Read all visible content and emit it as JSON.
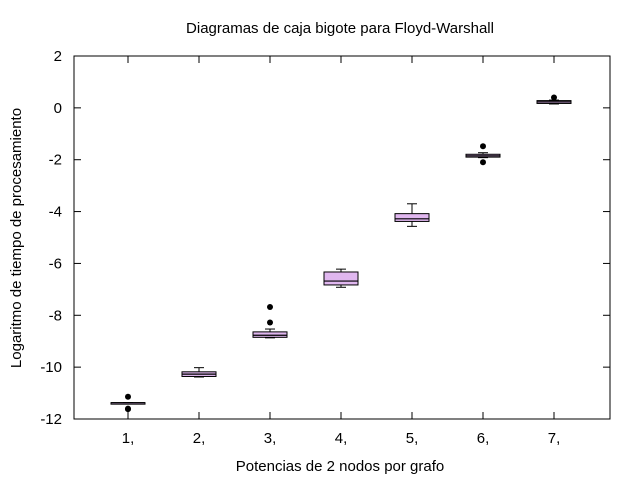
{
  "chart_data": {
    "type": "box",
    "title": "Diagramas de caja bigote para Floyd-Warshall",
    "xlabel": "Potencias de 2 nodos por grafo",
    "ylabel": "Logaritmo de tiempo de procesamiento",
    "ylim": [
      -12,
      2
    ],
    "yticks": [
      2,
      0,
      -2,
      -4,
      -6,
      -8,
      -10,
      -12
    ],
    "categories": [
      "1,",
      "2,",
      "3,",
      "4,",
      "5,",
      "6,",
      "7,"
    ],
    "box_color": "#e0b7ef",
    "series": [
      {
        "whisker_low": -11.37,
        "q1": -11.37,
        "median": -11.37,
        "q3": -11.37,
        "whisker_high": -11.37,
        "outliers": [
          -11.14,
          -11.6,
          -11.62
        ]
      },
      {
        "whisker_low": -10.38,
        "q1": -10.36,
        "median": -10.27,
        "q3": -10.18,
        "whisker_high": -10.02,
        "outliers": []
      },
      {
        "whisker_low": -8.87,
        "q1": -8.85,
        "median": -8.77,
        "q3": -8.64,
        "whisker_high": -8.53,
        "outliers": [
          -7.68,
          -8.28
        ]
      },
      {
        "whisker_low": -6.92,
        "q1": -6.83,
        "median": -6.68,
        "q3": -6.33,
        "whisker_high": -6.22,
        "outliers": []
      },
      {
        "whisker_low": -4.57,
        "q1": -4.38,
        "median": -4.28,
        "q3": -4.08,
        "whisker_high": -3.7,
        "outliers": []
      },
      {
        "whisker_low": -1.92,
        "q1": -1.9,
        "median": -1.85,
        "q3": -1.79,
        "whisker_high": -1.73,
        "outliers": [
          -1.48,
          -2.1
        ]
      },
      {
        "whisker_low": 0.15,
        "q1": 0.17,
        "median": 0.23,
        "q3": 0.28,
        "whisker_high": 0.3,
        "outliers": [
          0.4
        ]
      }
    ]
  }
}
